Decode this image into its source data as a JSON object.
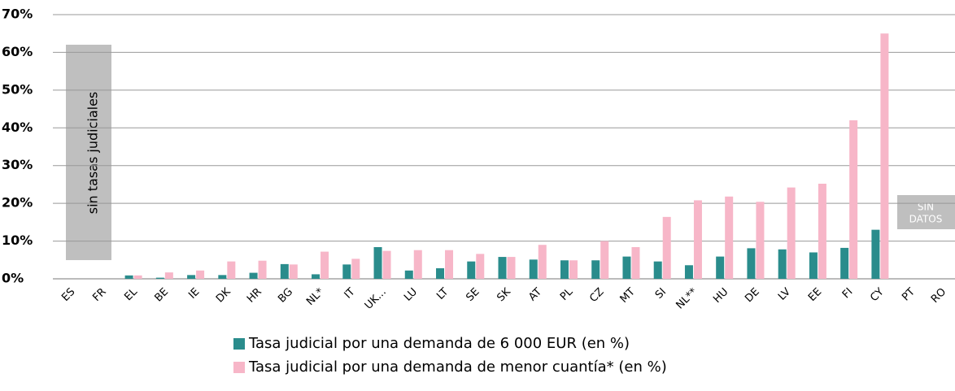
{
  "chart_data": {
    "type": "bar",
    "categories": [
      "ES",
      "FR",
      "EL",
      "BE",
      "IE",
      "DK",
      "HR",
      "BG",
      "NL*",
      "IT",
      "UK...",
      "LU",
      "LT",
      "SE",
      "SK",
      "AT",
      "PL",
      "CZ",
      "MT",
      "SI",
      "NL**",
      "HU",
      "DE",
      "LV",
      "EE",
      "FI",
      "CY",
      "PT",
      "RO"
    ],
    "series": [
      {
        "name": "Tasa judicial por una demanda de 6 000 EUR (en %)",
        "color": "#2a8c8c",
        "values": [
          null,
          null,
          0.9,
          0.3,
          1.0,
          1.0,
          1.6,
          3.9,
          1.2,
          3.8,
          8.4,
          2.2,
          2.8,
          4.6,
          5.8,
          5.1,
          4.9,
          4.9,
          5.9,
          4.6,
          3.6,
          5.9,
          8.1,
          7.8,
          7.0,
          8.2,
          13.0,
          null,
          null
        ]
      },
      {
        "name": "Tasa judicial por una demanda de menor cuantía* (en %)",
        "color": "#f7b6c8",
        "values": [
          null,
          null,
          0.9,
          1.7,
          2.2,
          4.6,
          4.8,
          3.8,
          7.2,
          5.3,
          7.4,
          7.6,
          7.6,
          6.6,
          5.8,
          9.0,
          4.9,
          10.0,
          8.4,
          16.4,
          20.8,
          21.8,
          20.4,
          24.2,
          25.2,
          42.0,
          65.0,
          null,
          null
        ]
      }
    ],
    "ylim": [
      0,
      70
    ],
    "yticks": [
      {
        "value": 0,
        "label": "0%"
      },
      {
        "value": 10,
        "label": "10%"
      },
      {
        "value": 20,
        "label": "20%"
      },
      {
        "value": 30,
        "label": "30%"
      },
      {
        "value": 40,
        "label": "40%"
      },
      {
        "value": 50,
        "label": "50%"
      },
      {
        "value": 60,
        "label": "60%"
      },
      {
        "value": 70,
        "label": "70%"
      }
    ],
    "grid": true,
    "annotations": [
      "sin tasas judiciales",
      "SIN",
      "DATOS"
    ]
  }
}
